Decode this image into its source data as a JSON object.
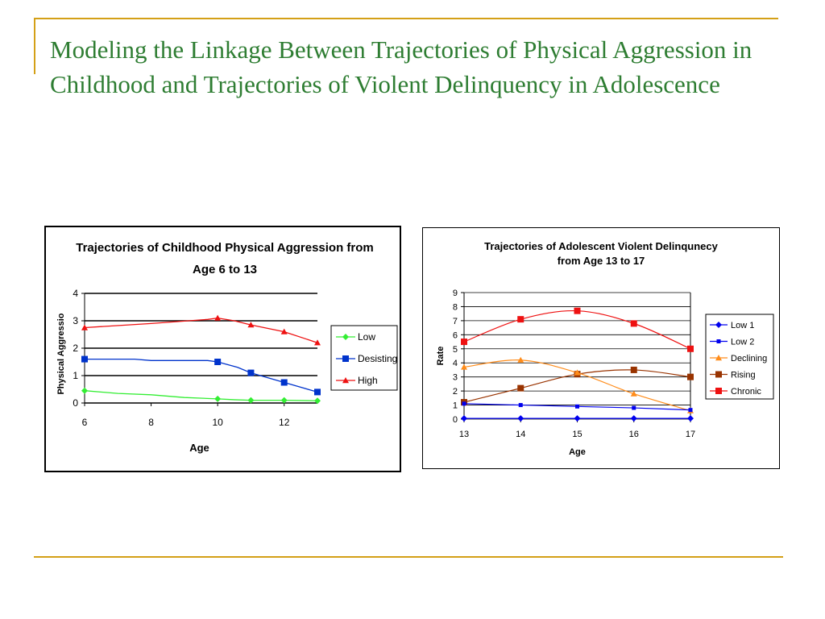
{
  "slide": {
    "title": "Modeling the Linkage Between Trajectories of Physical Aggression in Childhood and Trajectories of Violent Delinquency in Adolescence",
    "accent_color": "#d4a017",
    "title_color": "#2e7d32"
  },
  "chart_data": [
    {
      "type": "line",
      "title": "Trajectories of Childhood Physical Aggression from Age 6 to 13",
      "xlabel": "Age",
      "ylabel": "Physical Aggressio",
      "xlim": [
        6,
        13
      ],
      "ylim": [
        0,
        4
      ],
      "xticks": [
        6,
        8,
        10,
        12
      ],
      "yticks": [
        0,
        1,
        2,
        3,
        4
      ],
      "grid": true,
      "legend_position": "right",
      "series": [
        {
          "name": "Low",
          "color": "#33ee33",
          "marker": "diamond",
          "points": [
            [
              6,
              0.45
            ],
            [
              7,
              0.35
            ],
            [
              8,
              0.3
            ],
            [
              9,
              0.2
            ],
            [
              10,
              0.15
            ],
            [
              10.5,
              0.12
            ],
            [
              11,
              0.1
            ],
            [
              12,
              0.1
            ],
            [
              13,
              0.08
            ]
          ],
          "marker_points": [
            [
              6,
              0.45
            ],
            [
              10,
              0.15
            ],
            [
              11,
              0.1
            ],
            [
              12,
              0.1
            ],
            [
              13,
              0.08
            ]
          ]
        },
        {
          "name": "Desisting",
          "color": "#0033cc",
          "marker": "square",
          "points": [
            [
              6,
              1.6
            ],
            [
              7.5,
              1.6
            ],
            [
              8,
              1.55
            ],
            [
              9.7,
              1.55
            ],
            [
              10,
              1.5
            ],
            [
              10.6,
              1.3
            ],
            [
              11,
              1.1
            ],
            [
              12,
              0.75
            ],
            [
              13,
              0.4
            ]
          ],
          "marker_points": [
            [
              6,
              1.6
            ],
            [
              10,
              1.5
            ],
            [
              11,
              1.1
            ],
            [
              12,
              0.75
            ],
            [
              13,
              0.4
            ]
          ]
        },
        {
          "name": "High",
          "color": "#ee1111",
          "marker": "triangle",
          "points": [
            [
              6,
              2.75
            ],
            [
              8,
              2.9
            ],
            [
              9.7,
              3.05
            ],
            [
              10,
              3.1
            ],
            [
              10.5,
              3.0
            ],
            [
              11,
              2.85
            ],
            [
              12,
              2.6
            ],
            [
              13,
              2.2
            ]
          ],
          "marker_points": [
            [
              6,
              2.75
            ],
            [
              10,
              3.1
            ],
            [
              11,
              2.85
            ],
            [
              12,
              2.6
            ],
            [
              13,
              2.2
            ]
          ]
        }
      ]
    },
    {
      "type": "line",
      "title": "Trajectories of Adolescent Violent Delinqunecy from Age 13 to 17",
      "xlabel": "Age",
      "ylabel": "Rate",
      "categories": [
        13,
        14,
        15,
        16,
        17
      ],
      "ylim": [
        0,
        9
      ],
      "yticks": [
        0,
        1,
        2,
        3,
        4,
        5,
        6,
        7,
        8,
        9
      ],
      "grid": true,
      "legend_position": "right",
      "series": [
        {
          "name": "Low 1",
          "color": "#0000ee",
          "marker": "diamond",
          "values": [
            0.05,
            0.05,
            0.05,
            0.05,
            0.05
          ]
        },
        {
          "name": "Low 2",
          "color": "#0000ee",
          "marker": "small-square",
          "values": [
            1.1,
            1.0,
            0.9,
            0.8,
            0.65
          ]
        },
        {
          "name": "Declining",
          "color": "#ff8c1a",
          "marker": "triangle",
          "values": [
            3.7,
            4.2,
            3.3,
            1.8,
            0.6
          ]
        },
        {
          "name": "Rising",
          "color": "#993300",
          "marker": "square",
          "values": [
            1.2,
            2.2,
            3.2,
            3.5,
            3.0
          ]
        },
        {
          "name": "Chronic",
          "color": "#ee1111",
          "marker": "square",
          "values": [
            5.5,
            7.1,
            7.7,
            6.8,
            5.0
          ]
        }
      ]
    }
  ]
}
